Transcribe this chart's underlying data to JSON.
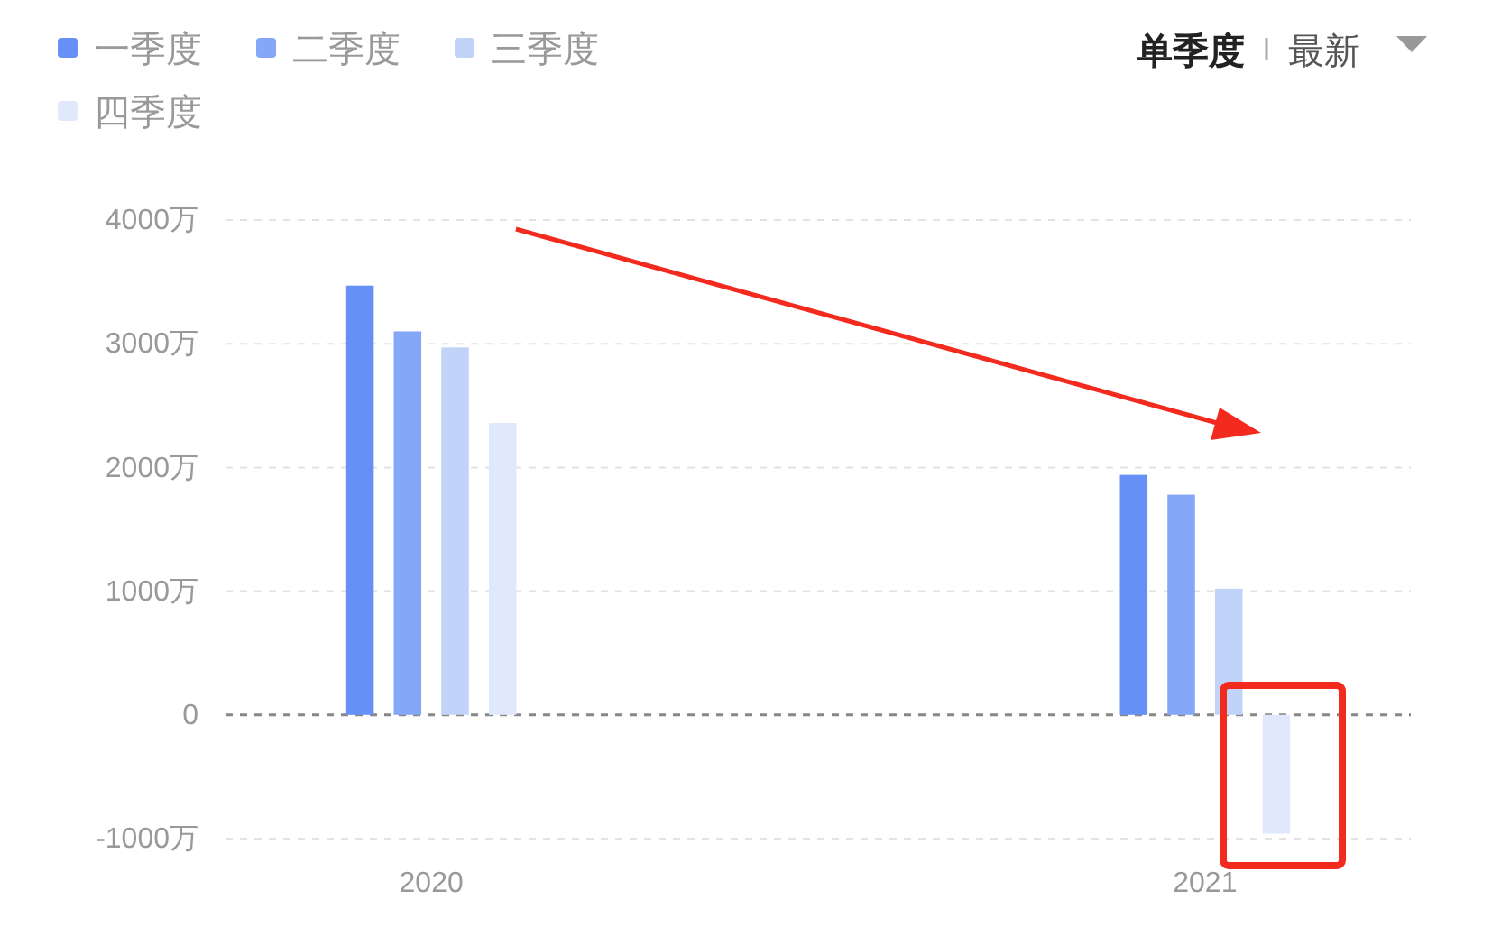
{
  "chart_data": {
    "type": "bar",
    "categories": [
      "2020",
      "2021"
    ],
    "series": [
      {
        "name": "一季度",
        "color": "#6690f5",
        "values": [
          3470,
          1940
        ]
      },
      {
        "name": "二季度",
        "color": "#85a7f7",
        "values": [
          3100,
          1780
        ]
      },
      {
        "name": "三季度",
        "color": "#c2d3fa",
        "values": [
          2970,
          1020
        ]
      },
      {
        "name": "四季度",
        "color": "#e0e8fb",
        "values": [
          2360,
          -960
        ]
      }
    ],
    "ylim": [
      -1000,
      4000
    ],
    "yticks": [
      {
        "value": -1000,
        "label": "-1000万"
      },
      {
        "value": 0,
        "label": "0"
      },
      {
        "value": 1000,
        "label": "1000万"
      },
      {
        "value": 2000,
        "label": "2000万"
      },
      {
        "value": 3000,
        "label": "3000万"
      },
      {
        "value": 4000,
        "label": "4000万"
      }
    ],
    "grid": "y",
    "ref_lines": [
      {
        "axis": "y",
        "value": 0,
        "color": "#888888",
        "line_style": "dashed"
      }
    ],
    "legend": "top left",
    "annotations": [
      "单季度",
      "最新"
    ]
  }
}
